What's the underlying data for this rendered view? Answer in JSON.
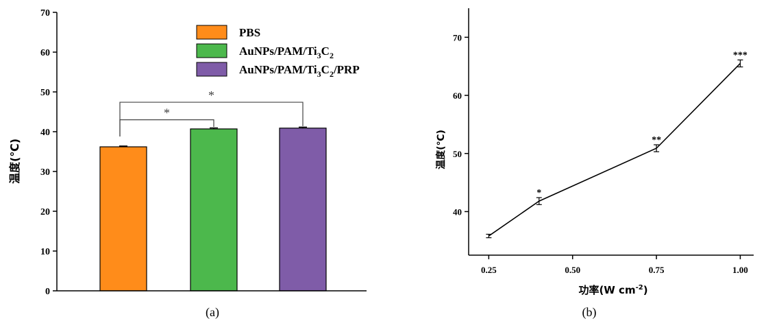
{
  "chart_data": [
    {
      "type": "bar",
      "panel_label": "(a)",
      "ylabel": "温度(℃)",
      "ylim": [
        0,
        70
      ],
      "yticks": [
        0,
        10,
        20,
        30,
        40,
        50,
        60,
        70
      ],
      "categories": [
        "PBS",
        "AuNPs/PAM/Ti3C2",
        "AuNPs/PAM/Ti3C2/PRP"
      ],
      "values": [
        36.2,
        40.7,
        40.9
      ],
      "errors": [
        0.2,
        0.25,
        0.25
      ],
      "colors": [
        "#ff8c1a",
        "#4cb84c",
        "#7f5ca8"
      ],
      "legend": [
        {
          "base": "PBS",
          "parts": []
        },
        {
          "base": "AuNPs/PAM/Ti",
          "parts": [
            {
              "sub": "3"
            },
            {
              "txt": "C"
            },
            {
              "sub": "2"
            }
          ]
        },
        {
          "base": "AuNPs/PAM/Ti",
          "parts": [
            {
              "sub": "3"
            },
            {
              "txt": "C"
            },
            {
              "sub": "2"
            },
            {
              "txt": "/PRP"
            }
          ]
        }
      ],
      "legend_position": "top-right",
      "significance": [
        {
          "from": 0,
          "to": 1,
          "label": "*"
        },
        {
          "from": 0,
          "to": 2,
          "label": "*"
        }
      ]
    },
    {
      "type": "line",
      "panel_label": "(b)",
      "xlabel": "功率(W cm-2)",
      "xlabel_parts": {
        "main": "功率(W cm",
        "sup": "-2",
        "end": ")"
      },
      "ylabel": "温度(℃)",
      "xlim": [
        0.19,
        1.04
      ],
      "ylim": [
        32.5,
        75
      ],
      "xticks": [
        "0.25",
        "0.50",
        "0.75",
        "1.00"
      ],
      "yticks": [
        40,
        50,
        60,
        70
      ],
      "x": [
        0.25,
        0.4,
        0.75,
        1.0
      ],
      "y": [
        35.8,
        41.8,
        50.9,
        65.5
      ],
      "errors": [
        0.3,
        0.6,
        0.6,
        0.6
      ],
      "annotations": [
        "",
        "*",
        "**",
        "***"
      ]
    }
  ]
}
